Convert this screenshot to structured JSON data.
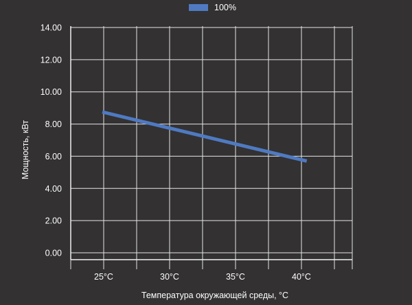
{
  "chart_data": {
    "type": "line",
    "xlabel": "Температура окружающей среды, °C",
    "ylabel": "Мощность, кВт",
    "x_ticks": [
      "25°C",
      "30°C",
      "35°C",
      "40°C"
    ],
    "y_ticks": [
      "0.00",
      "2.00",
      "4.00",
      "6.00",
      "8.00",
      "10.00",
      "12.00",
      "14.00"
    ],
    "ylim": [
      0,
      14
    ],
    "grid": true,
    "legend_position": "top",
    "series": [
      {
        "name": "100%",
        "color": "#4f7ac2",
        "points": [
          {
            "x": 24.9,
            "y": 8.75
          },
          {
            "x": 40.4,
            "y": 5.7
          }
        ]
      }
    ]
  }
}
